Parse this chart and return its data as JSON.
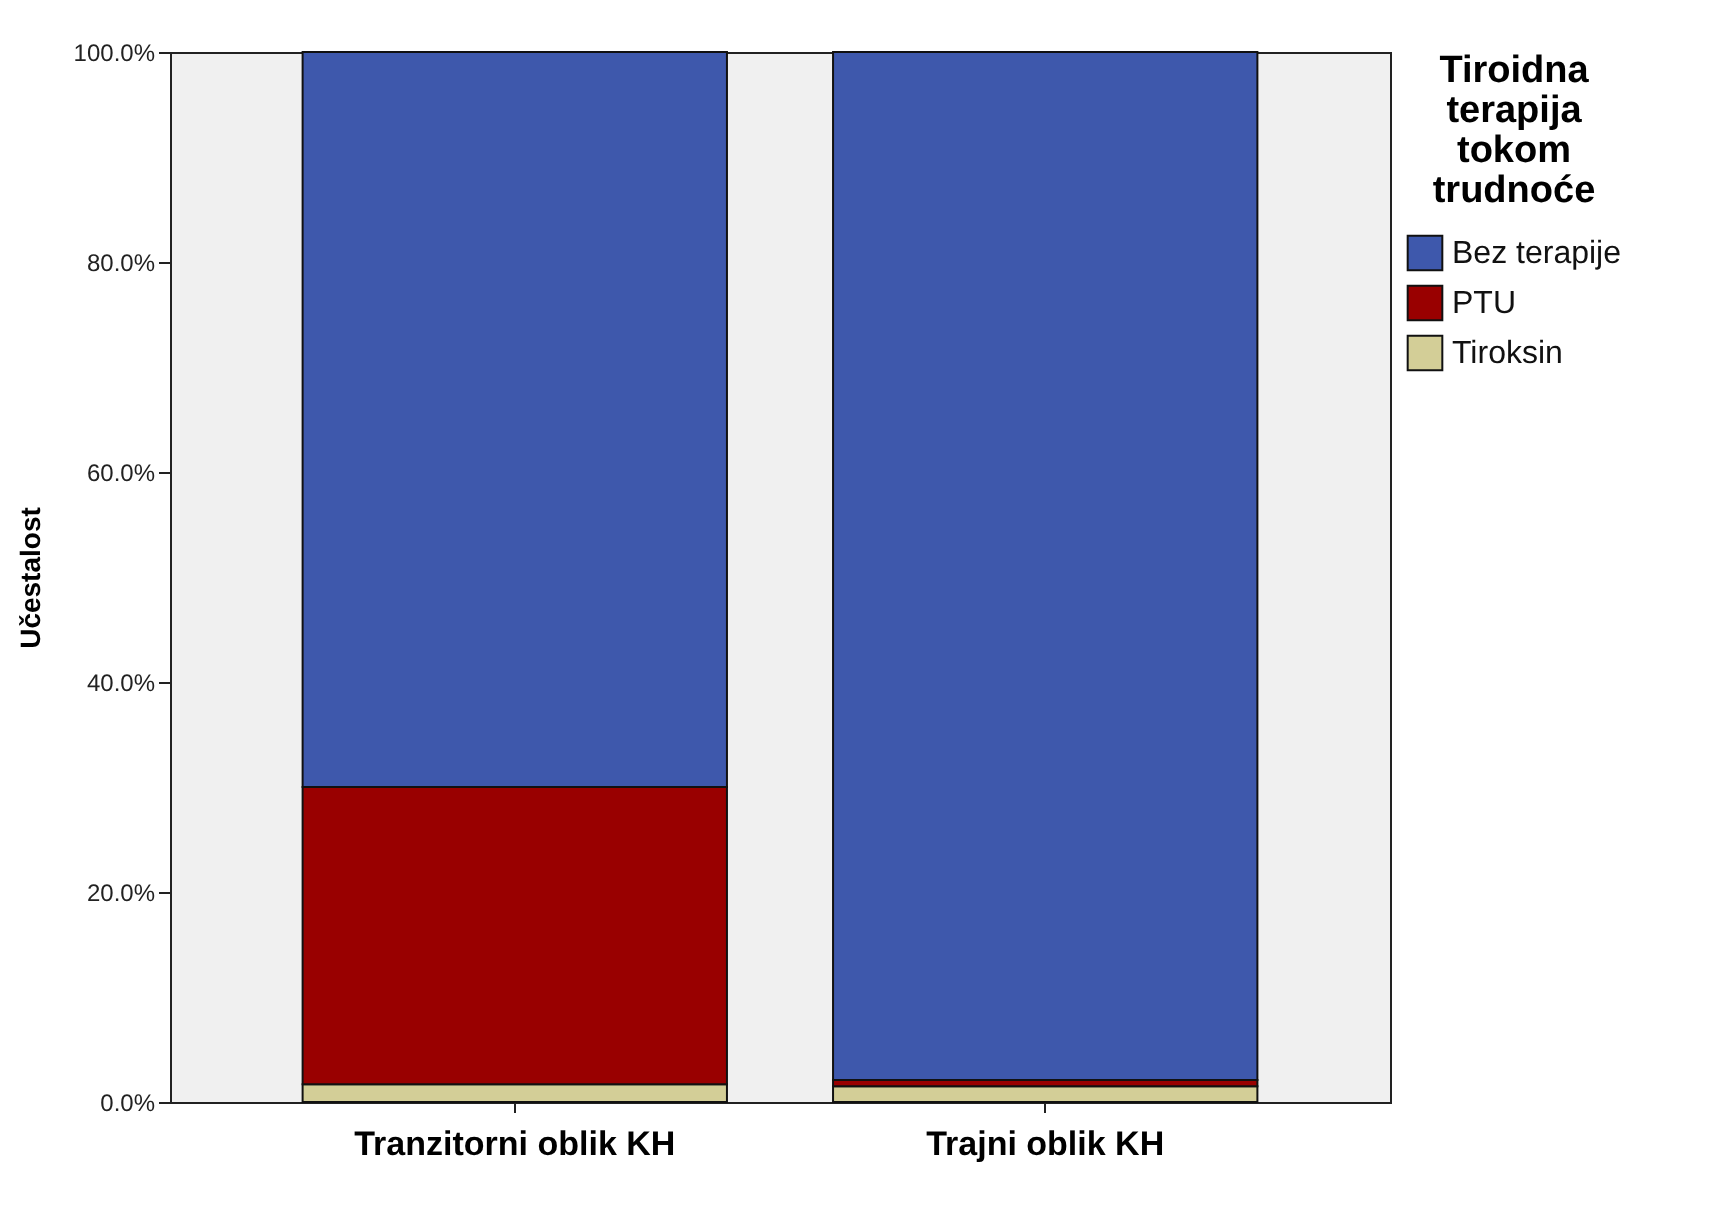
{
  "chart_data": {
    "type": "bar",
    "stacked": true,
    "ylabel": "Učestalost",
    "legend_title": "Tiroidna terapija tokom trudnoće",
    "categories": [
      "Tranzitorni oblik KH",
      "Trajni oblik KH"
    ],
    "series": [
      {
        "name": "Tiroksin",
        "color": "#d3ce97",
        "values": [
          1.7,
          1.5
        ]
      },
      {
        "name": "PTU",
        "color": "#990000",
        "values": [
          28.3,
          0.6
        ]
      },
      {
        "name": "Bez terapije",
        "color": "#3e58ac",
        "values": [
          70.0,
          97.9
        ]
      }
    ],
    "ylim": [
      0,
      100
    ],
    "yticks": [
      {
        "value": 0,
        "label": "0.0%"
      },
      {
        "value": 20,
        "label": "20.0%"
      },
      {
        "value": 40,
        "label": "40.0%"
      },
      {
        "value": 60,
        "label": "60.0%"
      },
      {
        "value": 80,
        "label": "80.0%"
      },
      {
        "value": 100,
        "label": "100.0%"
      }
    ],
    "grid": false,
    "legend": "top right"
  }
}
